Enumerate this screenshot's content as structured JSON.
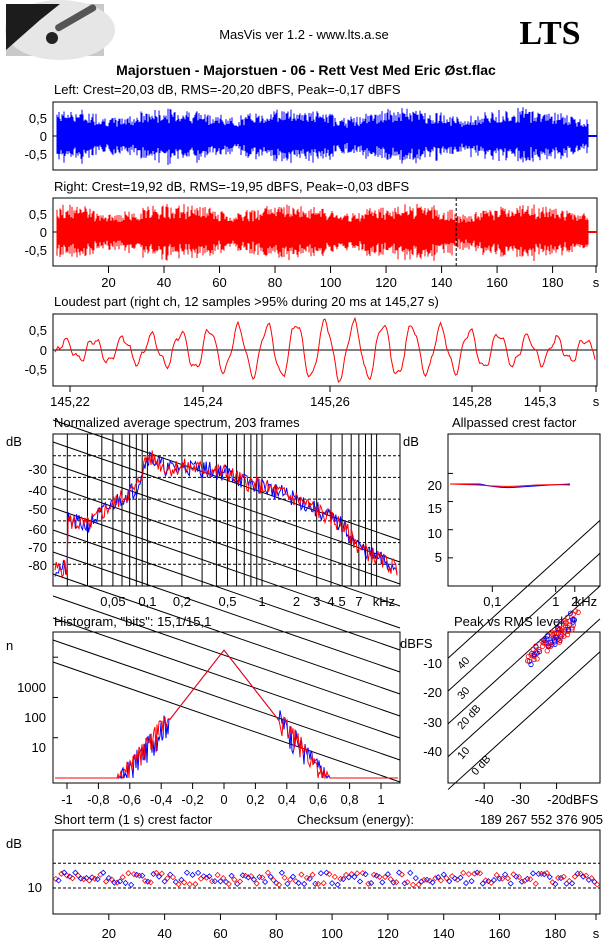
{
  "header": {
    "app_title": "MasVis ver 1.2 - www.lts.a.se",
    "brand": "LTS",
    "file_title": "Majorstuen - Majorstuen - 06 - Rett Vest Med Eric Øst.flac"
  },
  "colors": {
    "left": "#0000ff",
    "right": "#ff0000",
    "grid": "#000000"
  },
  "chart_data": [
    {
      "id": "left",
      "type": "line",
      "title": "Left: Crest=20,03 dB, RMS=-20,20 dBFS, Peak=-0,17 dBFS",
      "yticks": [
        "0,5",
        "0",
        "-0,5"
      ],
      "ylim": [
        -1,
        1
      ],
      "series": [
        {
          "name": "Left",
          "color": "#0000ff"
        }
      ]
    },
    {
      "id": "right",
      "type": "line",
      "title": "Right: Crest=19,92 dB, RMS=-19,95 dBFS, Peak=-0,03 dBFS",
      "yticks": [
        "0,5",
        "0",
        "-0,5"
      ],
      "ylim": [
        -1,
        1
      ],
      "xticks": [
        "20",
        "40",
        "60",
        "80",
        "100",
        "120",
        "140",
        "160",
        "180",
        "s"
      ],
      "marker_x": 145.27,
      "series": [
        {
          "name": "Right",
          "color": "#ff0000"
        }
      ]
    },
    {
      "id": "loudest",
      "type": "line",
      "title": "Loudest part (right ch, 12 samples >95% during 20 ms at 145,27 s)",
      "yticks": [
        "0,5",
        "0",
        "-0,5"
      ],
      "ylim": [
        -1,
        1
      ],
      "xticks": [
        "145,22",
        "145,24",
        "145,26",
        "145,28",
        "145,3",
        "s"
      ]
    },
    {
      "id": "spectrum",
      "type": "line",
      "title": "Normalized average spectrum, 203 frames",
      "ylabel": "dB",
      "yticks": [
        "-30",
        "-40",
        "-50",
        "-60",
        "-70",
        "-80"
      ],
      "ylim": [
        -90,
        -20
      ],
      "xticks": [
        "0,05",
        "0,1",
        "0,2",
        "0,5",
        "1",
        "2",
        "3",
        "4",
        "5",
        "7",
        "kHz"
      ],
      "x_scale": "log",
      "approx_curve": [
        [
          0.02,
          -60
        ],
        [
          0.03,
          -62
        ],
        [
          0.05,
          -52
        ],
        [
          0.08,
          -45
        ],
        [
          0.1,
          -30
        ],
        [
          0.15,
          -36
        ],
        [
          0.2,
          -35
        ],
        [
          0.3,
          -36
        ],
        [
          0.5,
          -38
        ],
        [
          0.7,
          -42
        ],
        [
          1,
          -44
        ],
        [
          2,
          -50
        ],
        [
          3,
          -55
        ],
        [
          5,
          -62
        ],
        [
          7,
          -72
        ],
        [
          10,
          -77
        ],
        [
          15,
          -82
        ]
      ]
    },
    {
      "id": "allpassed",
      "type": "line",
      "title": "Allpassed crest factor",
      "ylabel": "dB",
      "yticks": [
        "20",
        "15",
        "10",
        "5"
      ],
      "ylim": [
        0,
        27
      ],
      "xticks": [
        "0,1",
        "1",
        "2",
        "kHz"
      ],
      "x_scale": "log",
      "approx_values_db": 20
    },
    {
      "id": "histogram",
      "type": "line",
      "title": "Histogram, \"bits\": 15,1/15,1",
      "ylabel": "n",
      "yticks": [
        "1000",
        "100",
        "10"
      ],
      "xticks": [
        "-1",
        "-0,8",
        "-0,6",
        "-0,4",
        "-0,2",
        "0",
        "0,2",
        "0,4",
        "0,6",
        "0,8",
        "1"
      ],
      "xlim": [
        -1.05,
        1.05
      ],
      "y_scale": "log",
      "peak_n": 1500
    },
    {
      "id": "peak_rms",
      "type": "scatter",
      "title": "Peak vs RMS level",
      "ylabel": "dBFS",
      "xlabel": "dBFS",
      "yticks": [
        "-10",
        "-20",
        "-30",
        "-40"
      ],
      "xticks": [
        "-40",
        "-30",
        "-20"
      ],
      "diag_labels": [
        "40",
        "30",
        "20 dB",
        "10",
        "0 dB"
      ],
      "xlim": [
        -50,
        -8
      ],
      "ylim": [
        -48,
        -2
      ]
    },
    {
      "id": "crest_short",
      "type": "scatter",
      "title": "Short term (1 s) crest factor",
      "checksum_label": "Checksum (energy):",
      "checksum_value": "189 267 552 376 905",
      "ylabel": "dB",
      "yticks": [
        "10"
      ],
      "xticks": [
        "20",
        "40",
        "60",
        "80",
        "100",
        "120",
        "140",
        "160",
        "180",
        "s"
      ],
      "xlim": [
        0,
        196
      ],
      "approx_mean_db": 13
    }
  ]
}
